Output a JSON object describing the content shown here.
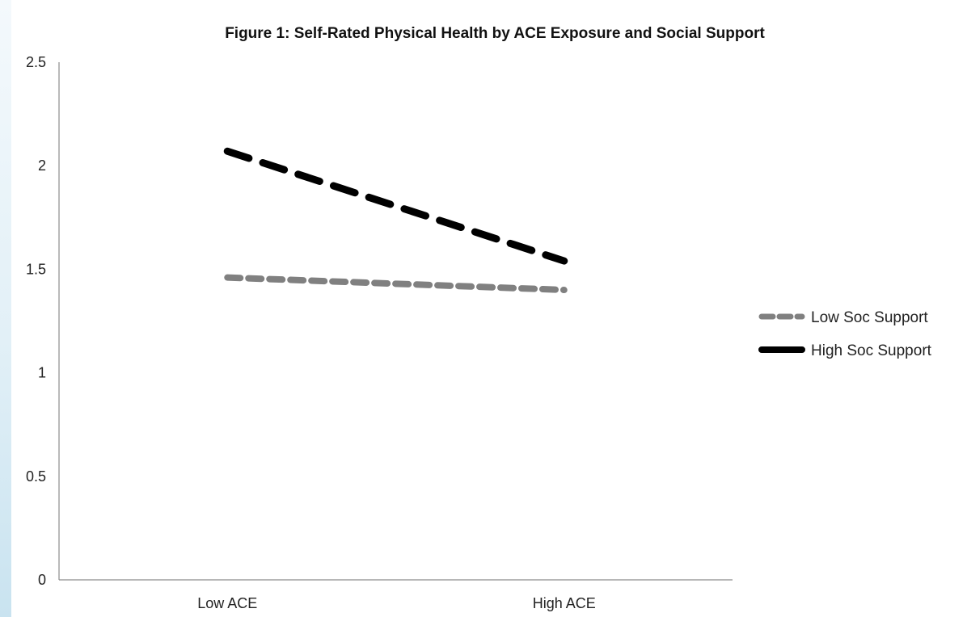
{
  "chart_data": {
    "type": "line",
    "title": "Figure 1: Self-Rated Physical Health by ACE Exposure and Social Support",
    "xlabel": "",
    "ylabel": "",
    "categories": [
      "Low ACE",
      "High ACE"
    ],
    "ylim": [
      0,
      2.5
    ],
    "yticks": [
      "0",
      "0.5",
      "1",
      "1.5",
      "2",
      "2.5"
    ],
    "grid": false,
    "legend_position": "right",
    "series": [
      {
        "name": "Low Soc Support",
        "values": [
          1.46,
          1.4
        ],
        "color": "#808080",
        "style": "dashed"
      },
      {
        "name": "High Soc Support",
        "values": [
          2.07,
          1.54
        ],
        "color": "#000000",
        "style": "dashed"
      }
    ]
  }
}
